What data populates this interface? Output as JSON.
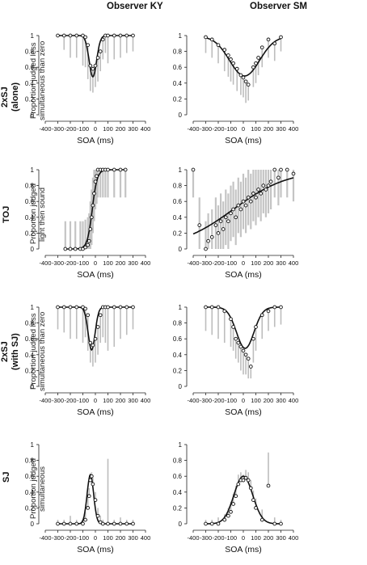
{
  "column_titles": [
    "Observer KY",
    "Observer SM"
  ],
  "row_labels": [
    "2xSJ\n(alone)",
    "TOJ",
    "2xSJ\n(with SJ)",
    "SJ"
  ],
  "y_labels": [
    "Proportion judged less\nsimultaneous than zero",
    "Proportion judged\nlight then sound",
    "Proportion judged less\nsimultaneous than zero",
    "Proportion judged\nsimultaneous"
  ],
  "x_label": "SOA (ms)",
  "x_ticks": [
    -400,
    -300,
    -200,
    -100,
    0,
    100,
    200,
    300,
    400
  ],
  "y_ticks": [
    0,
    0.2,
    0.4,
    0.6,
    0.8,
    1
  ],
  "chart_data": [
    {
      "type": "scatter",
      "panel": "2xSJ (alone) - Observer KY",
      "xlabel": "SOA (ms)",
      "ylabel": "Proportion judged less simultaneous than zero",
      "xlim": [
        -400,
        400
      ],
      "ylim": [
        0,
        1
      ],
      "x": [
        -300,
        -250,
        -200,
        -150,
        -100,
        -80,
        -60,
        -40,
        -20,
        0,
        20,
        40,
        60,
        80,
        100,
        150,
        200,
        250,
        300
      ],
      "y": [
        1,
        1,
        1,
        1,
        1,
        0.98,
        0.88,
        0.62,
        0.58,
        0.62,
        0.72,
        0.8,
        0.95,
        1,
        1,
        1,
        1,
        1,
        1
      ],
      "error_low": [
        1,
        0.82,
        0.72,
        0.72,
        0.62,
        0.6,
        0.45,
        0.3,
        0.28,
        0.35,
        0.42,
        0.55,
        0.7,
        0.78,
        0.65,
        0.7,
        0.72,
        0.78,
        0.8
      ],
      "fit": {
        "type": "inverted-gaussian",
        "center": -20,
        "sigma": 30,
        "floor": 0.48,
        "ceiling": 1
      }
    },
    {
      "type": "scatter",
      "panel": "2xSJ (alone) - Observer SM",
      "xlabel": "SOA (ms)",
      "ylabel": "Proportion judged less simultaneous than zero",
      "xlim": [
        -400,
        400
      ],
      "ylim": [
        0,
        1
      ],
      "x": [
        -300,
        -250,
        -200,
        -150,
        -120,
        -100,
        -80,
        -50,
        -20,
        0,
        20,
        40,
        80,
        100,
        120,
        150,
        200,
        250,
        300
      ],
      "y": [
        0.98,
        0.95,
        0.88,
        0.82,
        0.75,
        0.7,
        0.65,
        0.58,
        0.5,
        0.47,
        0.42,
        0.38,
        0.6,
        0.65,
        0.72,
        0.85,
        0.95,
        0.9,
        0.98
      ],
      "error_low": [
        0.78,
        0.72,
        0.65,
        0.55,
        0.48,
        0.42,
        0.38,
        0.3,
        0.25,
        0.22,
        0.15,
        0.18,
        0.35,
        0.4,
        0.5,
        0.6,
        0.72,
        0.68,
        0.8
      ],
      "fit": {
        "type": "inverted-gaussian",
        "center": 10,
        "sigma": 120,
        "floor": 0.49,
        "ceiling": 0.99
      }
    },
    {
      "type": "scatter",
      "panel": "TOJ - Observer KY",
      "xlabel": "SOA (ms)",
      "ylabel": "Proportion judged light then sound",
      "xlim": [
        -400,
        400
      ],
      "ylim": [
        0,
        1
      ],
      "x": [
        -240,
        -200,
        -160,
        -120,
        -100,
        -80,
        -60,
        -50,
        -40,
        -30,
        -20,
        -10,
        0,
        10,
        20,
        40,
        60,
        80,
        100,
        150,
        200,
        240
      ],
      "y": [
        0,
        0,
        0,
        0,
        0,
        0.02,
        0.05,
        0.1,
        0.25,
        0.4,
        0.55,
        0.7,
        0.85,
        0.92,
        1,
        1,
        1,
        1,
        1,
        1,
        1,
        1
      ],
      "fit": {
        "type": "sigmoid",
        "center": -25,
        "slope": 20
      }
    },
    {
      "type": "scatter",
      "panel": "TOJ - Observer SM",
      "xlabel": "SOA (ms)",
      "ylabel": "Proportion judged light then sound",
      "xlim": [
        -400,
        400
      ],
      "ylim": [
        0,
        1
      ],
      "x": [
        -400,
        -350,
        -300,
        -280,
        -250,
        -220,
        -200,
        -180,
        -160,
        -140,
        -120,
        -100,
        -80,
        -60,
        -40,
        -20,
        0,
        20,
        40,
        60,
        80,
        100,
        120,
        140,
        160,
        180,
        200,
        220,
        250,
        280,
        300,
        350,
        400
      ],
      "y": [
        1,
        0.3,
        0,
        0.1,
        0.15,
        0.3,
        0.2,
        0.35,
        0.25,
        0.4,
        0.35,
        0.45,
        0.5,
        0.4,
        0.55,
        0.5,
        0.6,
        0.55,
        0.65,
        0.6,
        0.7,
        0.65,
        0.75,
        0.7,
        0.8,
        0.75,
        0.8,
        0.85,
        1,
        0.9,
        1,
        1,
        0.95
      ],
      "fit": {
        "type": "sigmoid",
        "center": -80,
        "slope": 220
      }
    },
    {
      "type": "scatter",
      "panel": "2xSJ (with SJ) - Observer KY",
      "xlabel": "SOA (ms)",
      "ylabel": "Proportion judged less simultaneous than zero",
      "xlim": [
        -400,
        400
      ],
      "ylim": [
        0,
        1
      ],
      "x": [
        -300,
        -250,
        -200,
        -150,
        -100,
        -80,
        -60,
        -40,
        -20,
        0,
        20,
        40,
        60,
        80,
        100,
        150,
        200,
        250,
        300
      ],
      "y": [
        1,
        1,
        1,
        1,
        1,
        0.98,
        0.9,
        0.55,
        0.52,
        0.6,
        0.75,
        0.9,
        1,
        1,
        1,
        1,
        1,
        1,
        1
      ],
      "error_low": [
        0.72,
        0.68,
        0.6,
        0.6,
        0.55,
        0.62,
        0.45,
        0.3,
        0.25,
        0.3,
        0.4,
        0.55,
        0.62,
        0.55,
        0.45,
        0.5,
        0.6,
        0.65,
        0.72
      ],
      "fit": {
        "type": "inverted-gaussian",
        "center": -30,
        "sigma": 28,
        "floor": 0.46,
        "ceiling": 1
      }
    },
    {
      "type": "scatter",
      "panel": "2xSJ (with SJ) - Observer SM",
      "xlabel": "SOA (ms)",
      "ylabel": "Proportion judged less simultaneous than zero",
      "xlim": [
        -400,
        400
      ],
      "ylim": [
        0,
        1
      ],
      "x": [
        -300,
        -250,
        -200,
        -150,
        -100,
        -80,
        -60,
        -40,
        -20,
        0,
        20,
        40,
        60,
        80,
        100,
        150,
        200,
        250,
        300
      ],
      "y": [
        1,
        1,
        1,
        0.95,
        0.85,
        0.75,
        0.6,
        0.55,
        0.5,
        0.45,
        0.4,
        0.35,
        0.25,
        0.6,
        0.75,
        0.9,
        0.95,
        1,
        1
      ],
      "error_low": [
        0.7,
        0.65,
        0.6,
        0.55,
        0.5,
        0.45,
        0.35,
        0.3,
        0.2,
        0.15,
        0.15,
        0.1,
        0.1,
        0.3,
        0.45,
        0.6,
        0.7,
        0.75,
        0.78
      ],
      "fit": {
        "type": "inverted-gaussian",
        "center": 15,
        "sigma": 70,
        "floor": 0.48,
        "ceiling": 1
      }
    },
    {
      "type": "scatter",
      "panel": "SJ - Observer KY",
      "xlabel": "SOA (ms)",
      "ylabel": "Proportion judged simultaneous",
      "xlim": [
        -400,
        400
      ],
      "ylim": [
        0,
        1
      ],
      "x": [
        -300,
        -250,
        -200,
        -150,
        -100,
        -80,
        -60,
        -50,
        -40,
        -30,
        -20,
        0,
        20,
        40,
        60,
        100,
        150,
        200,
        250,
        300
      ],
      "y": [
        0,
        0,
        0,
        0,
        0,
        0.05,
        0.2,
        0.35,
        0.55,
        0.6,
        0.5,
        0.3,
        0.1,
        0.02,
        0,
        0,
        0,
        0,
        0,
        0
      ],
      "error_high": [
        0.05,
        0.05,
        0.1,
        0.05,
        0.05,
        0.15,
        0.35,
        0.45,
        0.62,
        0.65,
        0.58,
        0.4,
        0.2,
        0.1,
        0.05,
        0.82,
        0.05,
        0.08,
        0.05,
        0.05
      ],
      "fit": {
        "type": "gaussian",
        "center": -40,
        "sigma": 26,
        "peak": 0.62,
        "floor": 0
      }
    },
    {
      "type": "scatter",
      "panel": "SJ - Observer SM",
      "xlabel": "SOA (ms)",
      "ylabel": "Proportion judged simultaneous",
      "xlim": [
        -400,
        400
      ],
      "ylim": [
        0,
        1
      ],
      "x": [
        -300,
        -250,
        -200,
        -150,
        -120,
        -100,
        -80,
        -60,
        -40,
        -20,
        0,
        20,
        40,
        60,
        80,
        100,
        150,
        200,
        250,
        300
      ],
      "y": [
        0,
        0,
        0,
        0.05,
        0.1,
        0.15,
        0.25,
        0.35,
        0.5,
        0.55,
        0.55,
        0.58,
        0.55,
        0.45,
        0.3,
        0.2,
        0.05,
        0.48,
        0,
        0
      ],
      "error_high": [
        0.05,
        0.05,
        0.08,
        0.12,
        0.2,
        0.28,
        0.38,
        0.48,
        0.62,
        0.65,
        0.62,
        0.68,
        0.65,
        0.55,
        0.42,
        0.32,
        0.18,
        0.9,
        0.08,
        0.05
      ],
      "fit": {
        "type": "gaussian",
        "center": 0,
        "sigma": 75,
        "peak": 0.6,
        "floor": 0
      }
    }
  ]
}
